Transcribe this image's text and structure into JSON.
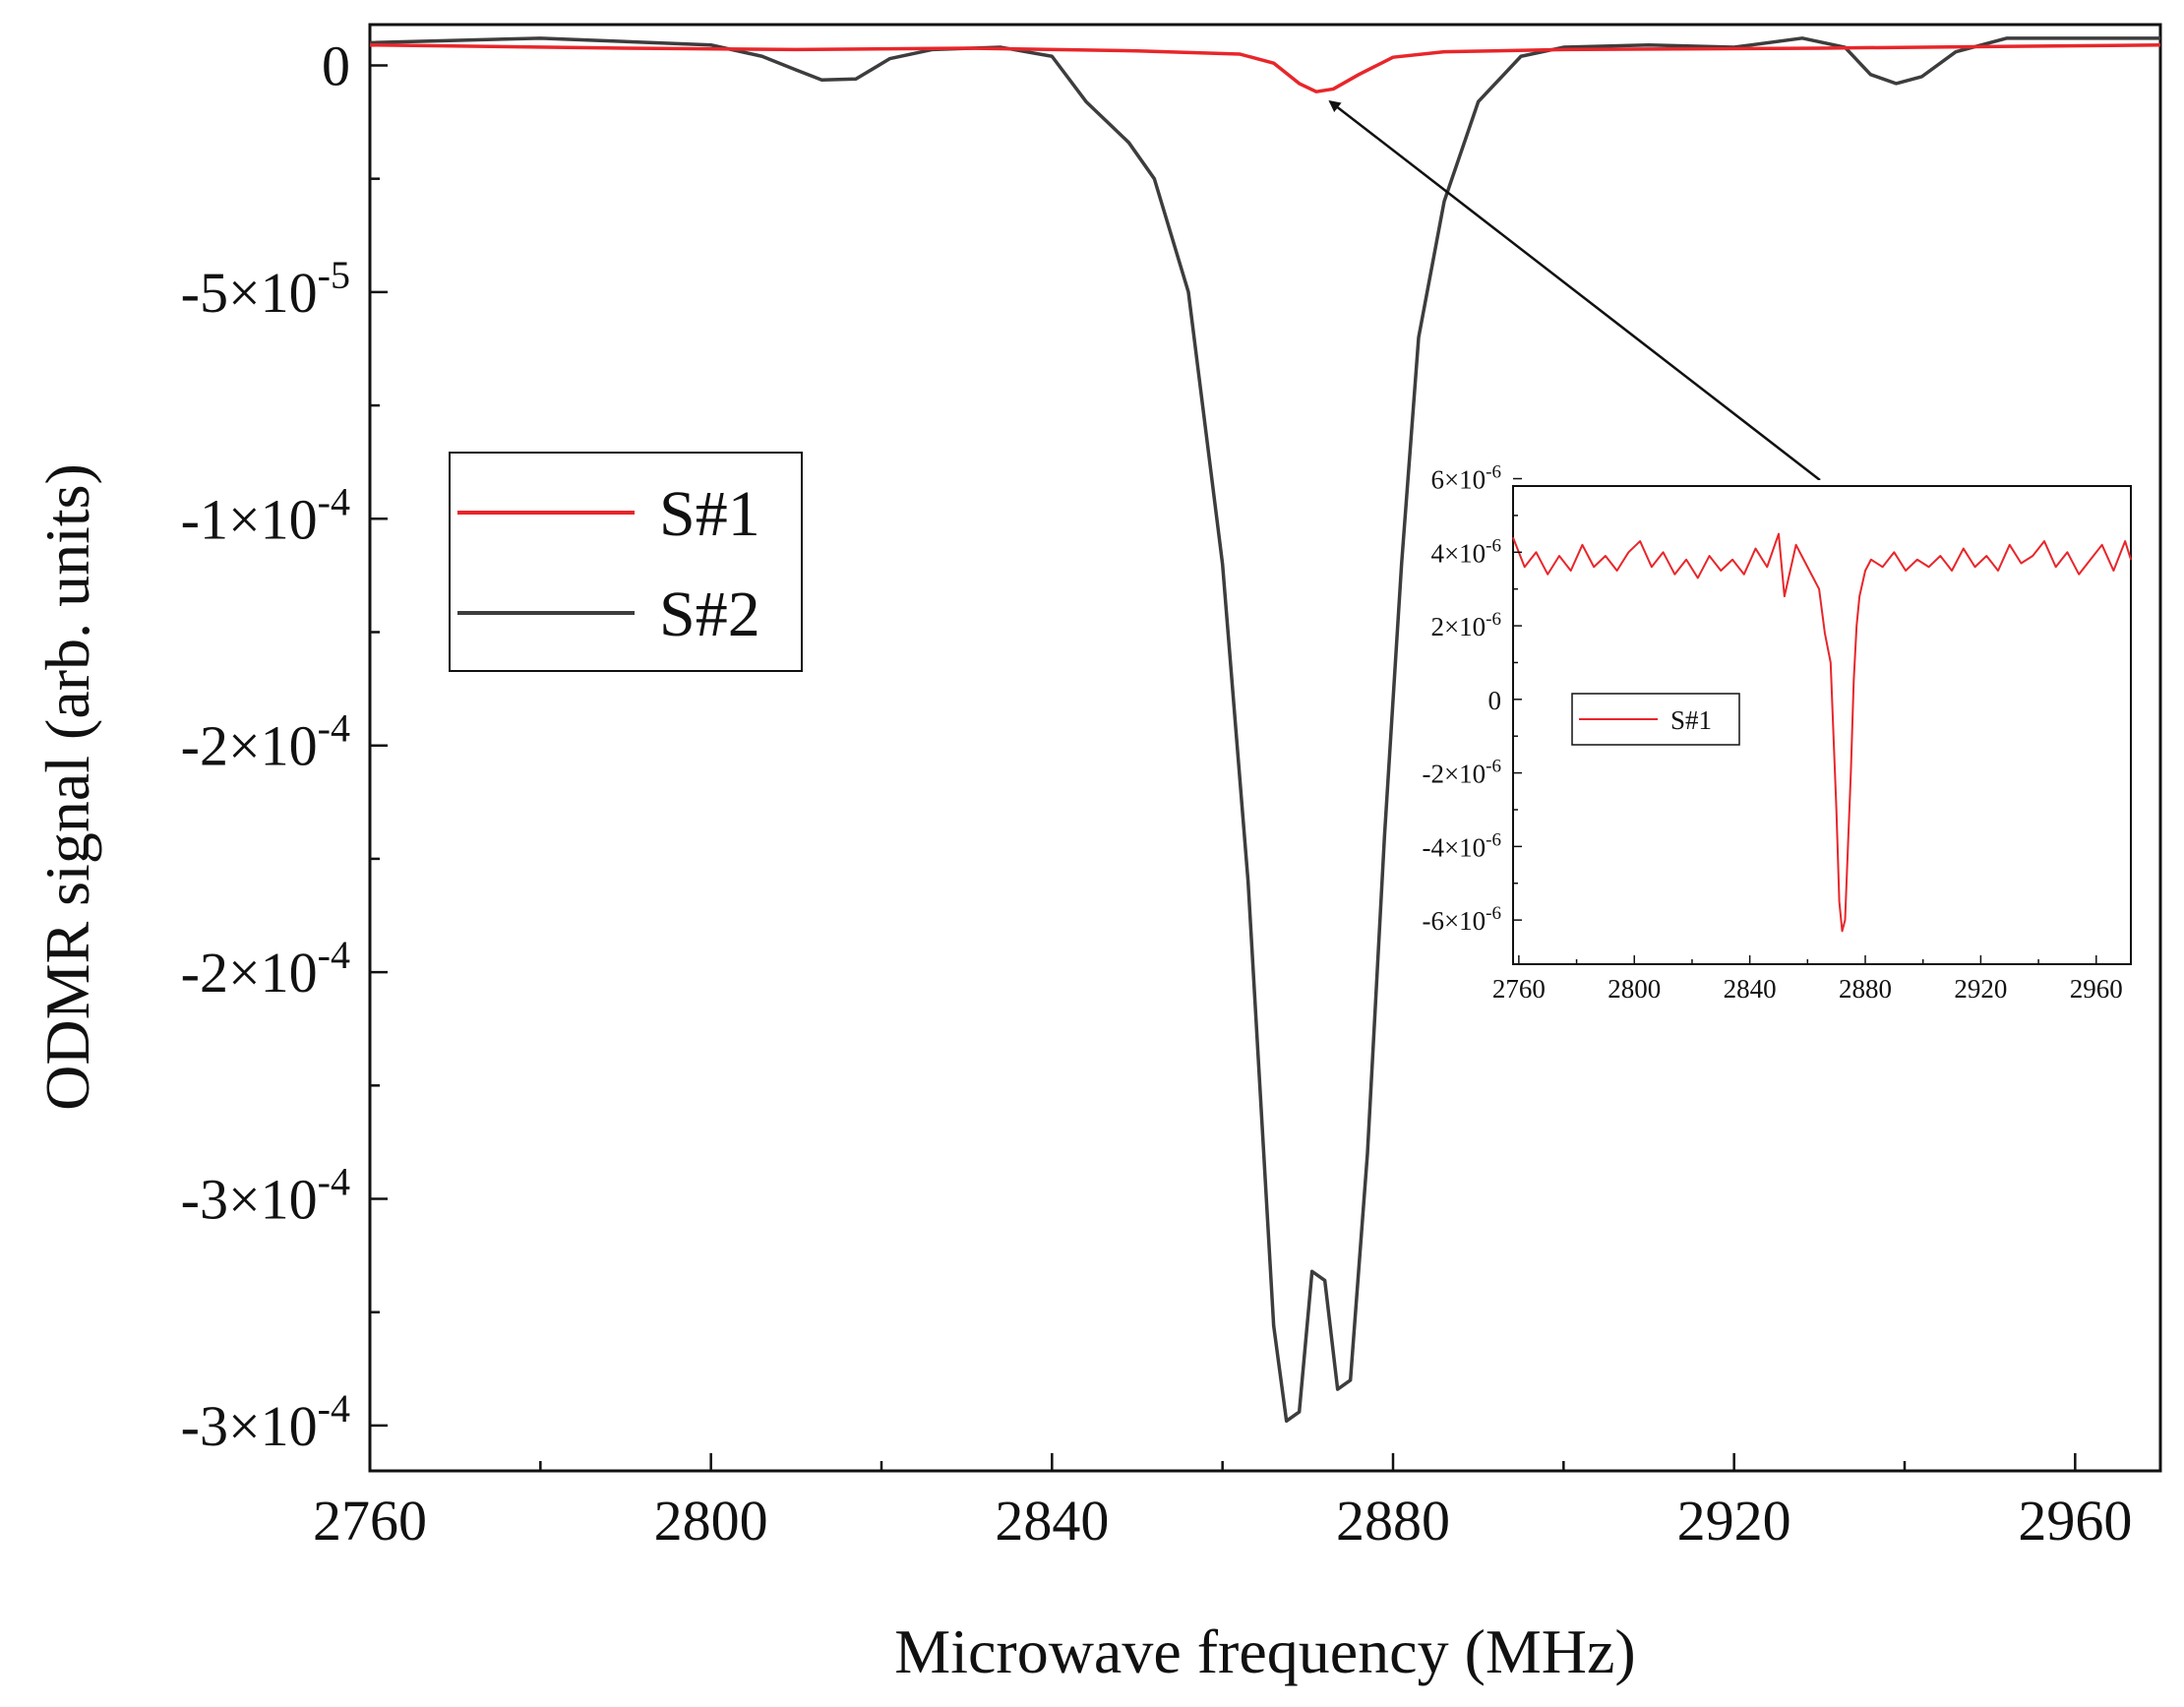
{
  "chart_data": [
    {
      "id": "main",
      "type": "line",
      "title": "",
      "xlabel": "Microwave frequency (MHz)",
      "ylabel": "ODMR signal (arb. units)",
      "xlim": [
        2760,
        2970
      ],
      "ylim": [
        -0.00031,
        9e-06
      ],
      "x_ticks": [
        2760,
        2800,
        2840,
        2880,
        2920,
        2960
      ],
      "x_tick_labels": [
        "2760",
        "2800",
        "2840",
        "2880",
        "2920",
        "2960"
      ],
      "y_ticks": [
        {
          "value": 0,
          "base": "0",
          "exp": ""
        },
        {
          "value": -5e-05,
          "base": "-5×10",
          "exp": "-5"
        },
        {
          "value": -0.0001,
          "base": "-1×10",
          "exp": "-4"
        },
        {
          "value": -0.00015,
          "base": "-2×10",
          "exp": "-4"
        },
        {
          "value": -0.0002,
          "base": "-2×10",
          "exp": "-4"
        },
        {
          "value": -0.00025,
          "base": "-3×10",
          "exp": "-4"
        },
        {
          "value": -0.0003,
          "base": "-3×10",
          "exp": "-4"
        }
      ],
      "legend": {
        "position": "left-middle",
        "entries": [
          "S#1",
          "S#2"
        ]
      },
      "series": [
        {
          "name": "S#1",
          "color": "#e8262a",
          "x": [
            2760,
            2790,
            2810,
            2830,
            2850,
            2862,
            2866,
            2869,
            2871,
            2873,
            2876,
            2880,
            2886,
            2900,
            2930,
            2970
          ],
          "values": [
            4.5e-06,
            3.8e-06,
            3.5e-06,
            3.8e-06,
            3.2e-06,
            2.5e-06,
            5e-07,
            -4e-06,
            -5.8e-06,
            -5.2e-06,
            -2e-06,
            1.8e-06,
            3e-06,
            3.5e-06,
            3.8e-06,
            4.5e-06
          ]
        },
        {
          "name": "S#2",
          "color": "#3d3d3d",
          "x": [
            2760,
            2780,
            2800,
            2806,
            2810,
            2813,
            2817,
            2821,
            2826,
            2834,
            2840,
            2844,
            2849,
            2852,
            2856,
            2860,
            2863,
            2866,
            2867.5,
            2869,
            2870.5,
            2872,
            2873.5,
            2875,
            2877,
            2879,
            2881,
            2883,
            2886,
            2890,
            2895,
            2900,
            2910,
            2920,
            2928,
            2933,
            2936,
            2939,
            2942,
            2946,
            2952,
            2960,
            2970
          ],
          "values": [
            5e-06,
            6e-06,
            4.5e-06,
            2e-06,
            -1e-06,
            -3.2e-06,
            -3e-06,
            1.5e-06,
            3.5e-06,
            4e-06,
            2e-06,
            -8e-06,
            -1.7e-05,
            -2.5e-05,
            -5e-05,
            -0.00011,
            -0.00018,
            -0.000278,
            -0.000299,
            -0.000297,
            -0.000266,
            -0.000268,
            -0.000292,
            -0.00029,
            -0.00024,
            -0.00017,
            -0.00011,
            -6e-05,
            -3e-05,
            -8e-06,
            2e-06,
            4e-06,
            4.5e-06,
            4e-06,
            6e-06,
            4e-06,
            -2e-06,
            -4e-06,
            -2.5e-06,
            3e-06,
            6e-06,
            6e-06,
            6e-06
          ]
        }
      ],
      "annotation": {
        "type": "arrow",
        "from": "inset",
        "to_series": "S#1",
        "to_x": 2871,
        "to_y": -5.8e-06
      }
    },
    {
      "id": "inset",
      "type": "line",
      "title": "",
      "xlabel": "",
      "ylabel": "",
      "xlim": [
        2758,
        2972
      ],
      "ylim": [
        -7.2e-06,
        5.8e-06
      ],
      "x_ticks": [
        2760,
        2800,
        2840,
        2880,
        2920,
        2960
      ],
      "x_tick_labels": [
        "2760",
        "2800",
        "2840",
        "2880",
        "2920",
        "2960"
      ],
      "y_ticks": [
        {
          "value": 6e-06,
          "base": "6×10",
          "exp": "-6"
        },
        {
          "value": 4e-06,
          "base": "4×10",
          "exp": "-6"
        },
        {
          "value": 2e-06,
          "base": "2×10",
          "exp": "-6"
        },
        {
          "value": 0,
          "base": "0",
          "exp": ""
        },
        {
          "value": -2e-06,
          "base": "-2×10",
          "exp": "-6"
        },
        {
          "value": -4e-06,
          "base": "-4×10",
          "exp": "-6"
        },
        {
          "value": -6e-06,
          "base": "-6×10",
          "exp": "-6"
        }
      ],
      "legend": {
        "position": "left-middle",
        "entries": [
          "S#1"
        ]
      },
      "series": [
        {
          "name": "S#1",
          "color": "#e8262a",
          "x": [
            2758,
            2762,
            2766,
            2770,
            2774,
            2778,
            2782,
            2786,
            2790,
            2794,
            2798,
            2802,
            2806,
            2810,
            2814,
            2818,
            2822,
            2826,
            2830,
            2834,
            2838,
            2842,
            2846,
            2850,
            2852,
            2856,
            2860,
            2864,
            2866,
            2868,
            2870,
            2871,
            2872,
            2873,
            2874,
            2875,
            2876,
            2877,
            2878,
            2880,
            2882,
            2886,
            2890,
            2894,
            2898,
            2902,
            2906,
            2910,
            2914,
            2918,
            2922,
            2926,
            2930,
            2934,
            2938,
            2942,
            2946,
            2950,
            2954,
            2958,
            2962,
            2966,
            2970,
            2972
          ],
          "values": [
            4.4e-06,
            3.6e-06,
            4e-06,
            3.4e-06,
            3.9e-06,
            3.5e-06,
            4.2e-06,
            3.6e-06,
            3.9e-06,
            3.5e-06,
            4e-06,
            4.3e-06,
            3.6e-06,
            4e-06,
            3.4e-06,
            3.8e-06,
            3.3e-06,
            3.9e-06,
            3.5e-06,
            3.8e-06,
            3.4e-06,
            4.1e-06,
            3.6e-06,
            4.5e-06,
            2.8e-06,
            4.2e-06,
            3.6e-06,
            3e-06,
            1.8e-06,
            1e-06,
            -3e-06,
            -5.5e-06,
            -6.3e-06,
            -6e-06,
            -4e-06,
            -2e-06,
            5e-07,
            2e-06,
            2.8e-06,
            3.5e-06,
            3.8e-06,
            3.6e-06,
            4e-06,
            3.5e-06,
            3.8e-06,
            3.6e-06,
            3.9e-06,
            3.5e-06,
            4.1e-06,
            3.6e-06,
            3.9e-06,
            3.5e-06,
            4.2e-06,
            3.7e-06,
            3.9e-06,
            4.3e-06,
            3.6e-06,
            4e-06,
            3.4e-06,
            3.8e-06,
            4.2e-06,
            3.5e-06,
            4.3e-06,
            3.8e-06
          ]
        }
      ]
    }
  ]
}
